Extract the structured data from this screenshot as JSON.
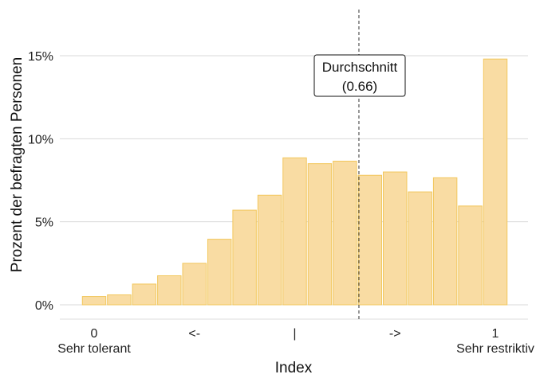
{
  "chart_data": {
    "type": "bar",
    "title": "",
    "xlabel": "Index",
    "ylabel": "Prozent der befragten Personen",
    "ylim": [
      0,
      15.5
    ],
    "yticks": [
      0,
      5,
      10,
      15
    ],
    "ytick_labels": [
      "0%",
      "5%",
      "10%",
      "15%"
    ],
    "xlim": [
      -0.03,
      1.03
    ],
    "xticks": [
      {
        "pos": 0.0,
        "label": "0",
        "sublabel": "Sehr tolerant"
      },
      {
        "pos": 0.25,
        "label": "<-",
        "sublabel": ""
      },
      {
        "pos": 0.5,
        "label": "|",
        "sublabel": ""
      },
      {
        "pos": 0.75,
        "label": "->",
        "sublabel": ""
      },
      {
        "pos": 1.0,
        "label": "1",
        "sublabel": "Sehr restriktiv"
      }
    ],
    "bin_width": 0.0625,
    "bins": [
      0.0,
      0.0625,
      0.125,
      0.1875,
      0.25,
      0.3125,
      0.375,
      0.4375,
      0.5,
      0.5625,
      0.625,
      0.6875,
      0.75,
      0.8125,
      0.875,
      0.9375,
      1.0
    ],
    "values": [
      0.5,
      0.6,
      1.25,
      1.75,
      2.5,
      3.95,
      5.7,
      6.6,
      8.85,
      8.5,
      8.65,
      7.8,
      8.0,
      6.8,
      7.65,
      5.95,
      14.8
    ],
    "mean": {
      "value": 0.66,
      "label_line1": "Durchschnitt",
      "label_line2": "(0.66)"
    },
    "colors": {
      "bar_fill": "#f9dca3",
      "bar_stroke": "#f2c75c",
      "grid": "#d9d9d9",
      "mean_line": "#333333"
    },
    "grid": true,
    "legend": "none"
  }
}
